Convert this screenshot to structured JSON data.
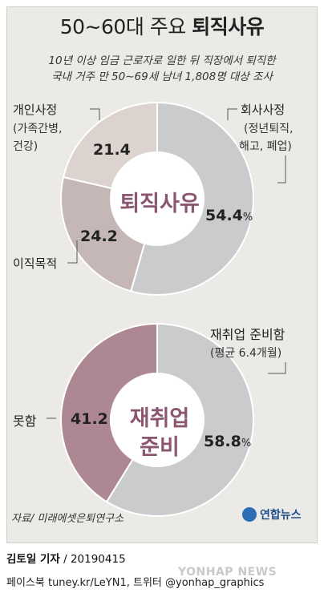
{
  "header": {
    "title_prefix": "50∼60대 주요 ",
    "title_bold": "퇴직사유",
    "subtitle_line1": "10년 이상 임금 근로자로 일한 뒤 직장에서 퇴직한",
    "subtitle_line2": "국내 거주 만 50∼69세 남녀 1,808명 대상 조사"
  },
  "chart_data": [
    {
      "type": "pie",
      "title": "퇴직사유",
      "center_label": "퇴직사유",
      "slices": [
        {
          "name": "회사사정",
          "detail_line1": "(정년퇴직,",
          "detail_line2": "해고, 폐업)",
          "value": 54.4,
          "value_label": "54.4",
          "unit": "%",
          "color": "#c9cbcc"
        },
        {
          "name": "이직목적",
          "value": 24.2,
          "value_label": "24.2",
          "color": "#c4b7b6"
        },
        {
          "name": "개인사정",
          "detail_line1": "(가족간병,",
          "detail_line2": "건강)",
          "value": 21.4,
          "value_label": "21.4",
          "color": "#dcd3cf"
        }
      ]
    },
    {
      "type": "pie",
      "title": "재취업 준비",
      "center_label_line1": "재취업",
      "center_label_line2": "준비",
      "slices": [
        {
          "name": "재취업 준비함",
          "detail_line1": "(평균 6.4개월)",
          "value": 58.8,
          "value_label": "58.8",
          "unit": "%",
          "color": "#c9cbcc"
        },
        {
          "name": "못함",
          "value": 41.2,
          "value_label": "41.2",
          "color": "#ad8792"
        }
      ]
    }
  ],
  "footer": {
    "source": "자료/ 미래에셋은퇴연구소",
    "logo": "연합뉴스",
    "byline_name": "김토일 기자",
    "byline_date": " / 20190415",
    "social": "페이스북 tuney.kr/LeYN1, 트위터 @yonhap_graphics",
    "watermark": "YONHAP NEWS"
  }
}
